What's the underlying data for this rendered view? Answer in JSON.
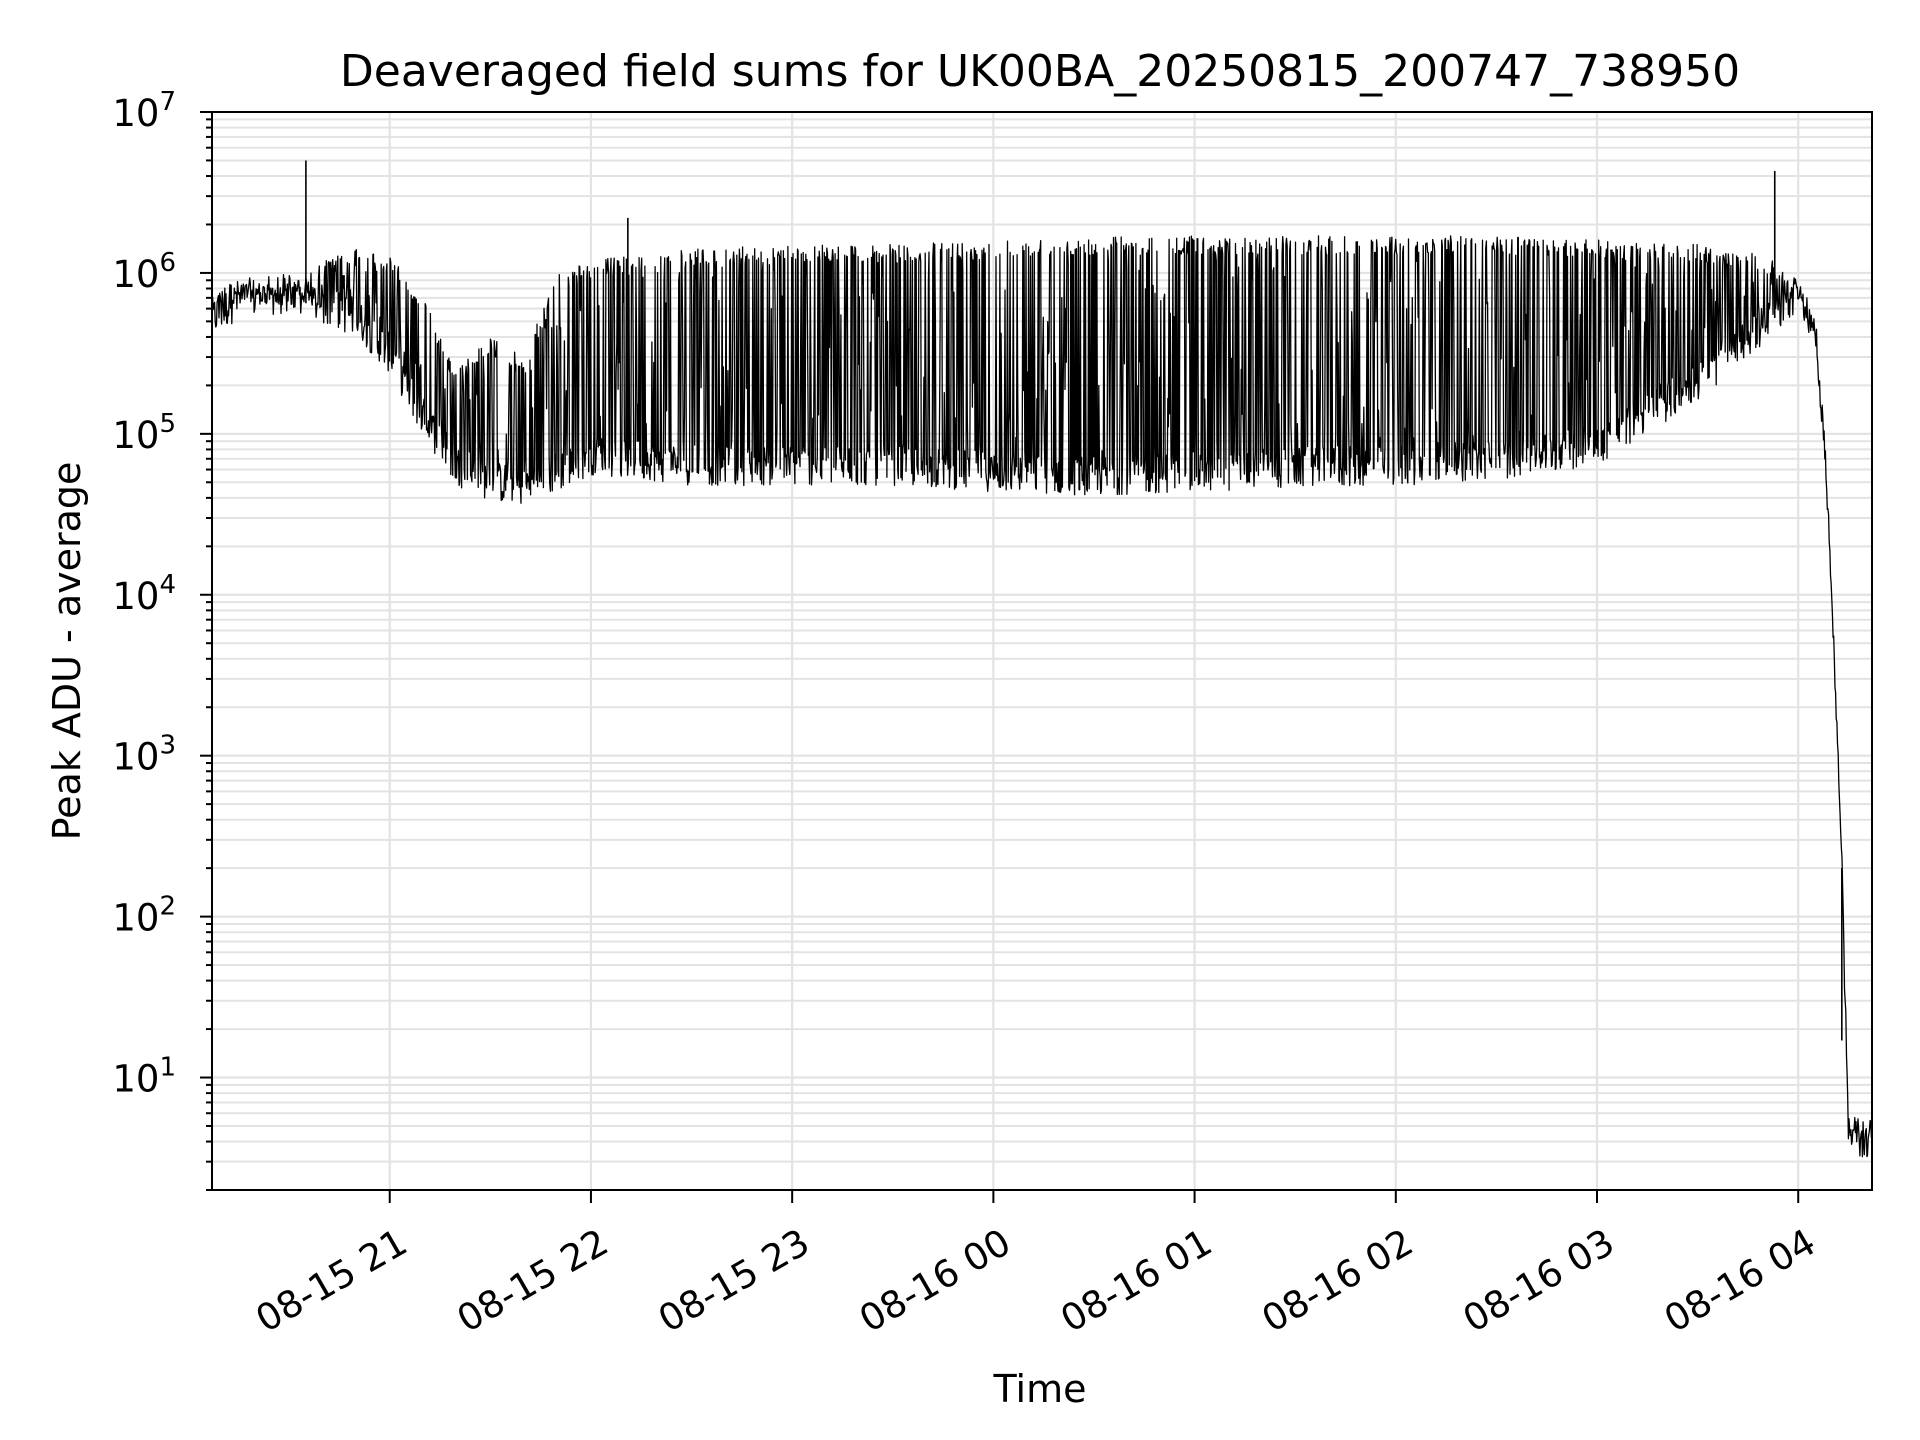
{
  "chart_data": {
    "type": "line",
    "title": "Deaveraged field sums for UK00BA_20250815_200747_738950",
    "xlabel": "Time",
    "ylabel": "Peak ADU - average",
    "yscale": "log",
    "ylim": [
      2,
      10000000
    ],
    "xlim": [
      "2025-08-15 20:07",
      "2025-08-16 04:22"
    ],
    "grid": "both (major and minor)",
    "x_ticks": [
      "08-15 21",
      "08-15 22",
      "08-15 23",
      "08-16 00",
      "08-16 01",
      "08-16 02",
      "08-16 03",
      "08-16 04"
    ],
    "y_ticks": [
      {
        "base": "10",
        "exp": "1"
      },
      {
        "base": "10",
        "exp": "2"
      },
      {
        "base": "10",
        "exp": "3"
      },
      {
        "base": "10",
        "exp": "4"
      },
      {
        "base": "10",
        "exp": "5"
      },
      {
        "base": "10",
        "exp": "6"
      },
      {
        "base": "10",
        "exp": "7"
      }
    ],
    "line_color": "#000000",
    "series": [
      {
        "style": "dense noisy trace with spikes (approximate envelope)",
        "x": [
          "2025-08-15 20:07",
          "2025-08-15 20:15",
          "2025-08-15 20:30",
          "2025-08-15 20:40",
          "2025-08-15 20:50",
          "2025-08-15 21:00",
          "2025-08-15 21:10",
          "2025-08-15 21:20",
          "2025-08-15 21:30",
          "2025-08-15 21:40",
          "2025-08-15 21:50",
          "2025-08-15 22:00",
          "2025-08-15 22:15",
          "2025-08-15 22:30",
          "2025-08-15 23:00",
          "2025-08-15 23:30",
          "2025-08-16 00:00",
          "2025-08-16 00:30",
          "2025-08-16 01:00",
          "2025-08-16 01:30",
          "2025-08-16 02:00",
          "2025-08-16 02:30",
          "2025-08-16 03:00",
          "2025-08-16 03:30",
          "2025-08-16 03:50",
          "2025-08-16 04:00",
          "2025-08-16 04:05",
          "2025-08-16 04:08",
          "2025-08-16 04:11",
          "2025-08-16 04:13",
          "2025-08-16 04:15",
          "2025-08-16 04:22"
        ],
        "baseline": [
          500000,
          650000,
          700000,
          600000,
          500000,
          300000,
          120000,
          60000,
          48000,
          45000,
          55000,
          70000,
          65000,
          60000,
          60000,
          60000,
          55000,
          52000,
          55000,
          58000,
          60000,
          65000,
          80000,
          200000,
          450000,
          750000,
          400000,
          80000,
          3000,
          200,
          4,
          4
        ],
        "peaks": [
          800000,
          900000,
          800000,
          1200000,
          1400000,
          1300000,
          700000,
          250000,
          400000,
          300000,
          1000000,
          1200000,
          1300000,
          1400000,
          1500000,
          1500000,
          1600000,
          1700000,
          1700000,
          1700000,
          1700000,
          1700000,
          1600000,
          1500000,
          1300000,
          900000,
          450000,
          90000,
          3500,
          250,
          5,
          5
        ]
      }
    ],
    "spikes": [
      {
        "x": "2025-08-15 20:35",
        "y": 5000000
      },
      {
        "x": "2025-08-15 22:11",
        "y": 2200000
      },
      {
        "x": "2025-08-16 03:53",
        "y": 4300000
      },
      {
        "x": "2025-08-16 04:13",
        "y": 17
      }
    ]
  }
}
